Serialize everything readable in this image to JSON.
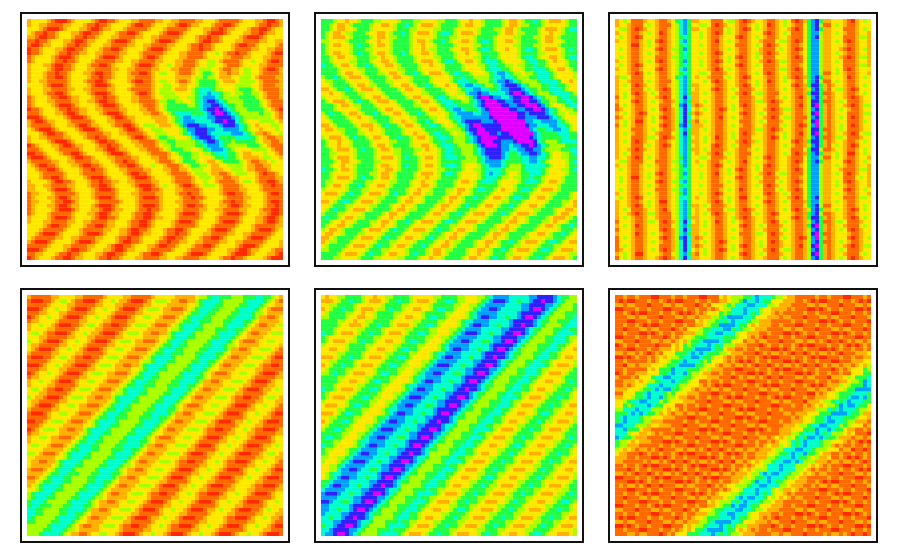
{
  "figure": {
    "background": "#ffffff",
    "frame_color": "#111111",
    "colormap": [
      "#ff2a00",
      "#ff6a00",
      "#ffb000",
      "#ffe800",
      "#a8ff00",
      "#22ff44",
      "#00ffcc",
      "#00a0ff",
      "#3020ff",
      "#e000ff"
    ],
    "panels": [
      {
        "id": "top-left",
        "pattern": "vertical-waves",
        "dominant": "orange-red"
      },
      {
        "id": "top-center",
        "pattern": "vertical-waves",
        "dominant": "green-yellow-red"
      },
      {
        "id": "top-right",
        "pattern": "vertical-stripes",
        "dominant": "orange-yellow"
      },
      {
        "id": "bottom-left",
        "pattern": "diagonal-bands",
        "dominant": "orange-red"
      },
      {
        "id": "bottom-center",
        "pattern": "diagonal-bands",
        "dominant": "green-yellow-red"
      },
      {
        "id": "bottom-right",
        "pattern": "diagonal-checker",
        "dominant": "orange-yellow"
      }
    ]
  }
}
